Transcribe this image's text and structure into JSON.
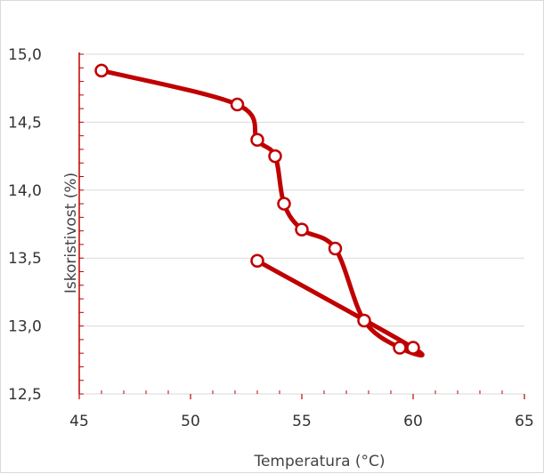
{
  "chart_data": {
    "type": "scatter",
    "title": "",
    "xlabel": "Temperatura (°C)",
    "ylabel": "Iskoristivost (%)",
    "xlim": [
      45,
      65
    ],
    "ylim": [
      12.5,
      15.0
    ],
    "x_ticks": [
      "45",
      "50",
      "55",
      "60",
      "65"
    ],
    "y_ticks": [
      "12,5",
      "13,0",
      "13,5",
      "14,0",
      "14,5",
      "15,0"
    ],
    "grid": "horizontal",
    "legend": "none",
    "series": [
      {
        "color": "#c00000",
        "marker": "open-circle",
        "line": "smooth",
        "points": [
          {
            "x": 46.0,
            "y": 14.88
          },
          {
            "x": 52.1,
            "y": 14.63
          },
          {
            "x": 53.0,
            "y": 14.37
          },
          {
            "x": 53.8,
            "y": 14.25
          },
          {
            "x": 54.2,
            "y": 13.9
          },
          {
            "x": 55.0,
            "y": 13.71
          },
          {
            "x": 56.5,
            "y": 13.57
          },
          {
            "x": 57.8,
            "y": 13.04
          },
          {
            "x": 59.4,
            "y": 12.84
          },
          {
            "x": 60.0,
            "y": 12.84
          },
          {
            "x": 53.0,
            "y": 13.48
          }
        ]
      }
    ]
  }
}
